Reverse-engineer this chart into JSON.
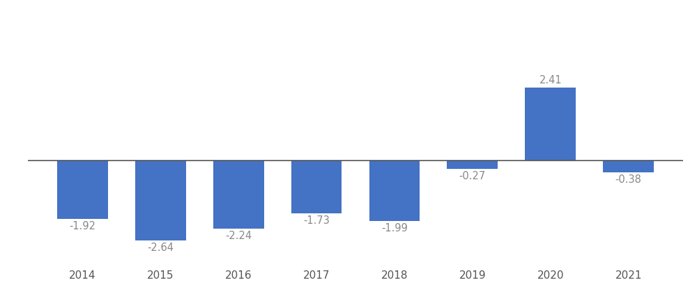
{
  "years": [
    2014,
    2015,
    2016,
    2017,
    2018,
    2019,
    2020,
    2021
  ],
  "values": [
    -1.92,
    -2.64,
    -2.24,
    -1.73,
    -1.99,
    -0.27,
    2.41,
    -0.38
  ],
  "bar_color": "#4472C4",
  "background_color": "#ffffff",
  "label_color": "#888888",
  "label_fontsize": 10.5,
  "tick_fontsize": 11,
  "tick_color": "#555555",
  "spine_color": "#555555",
  "bar_width": 0.65,
  "ylim": [
    -3.5,
    4.5
  ]
}
